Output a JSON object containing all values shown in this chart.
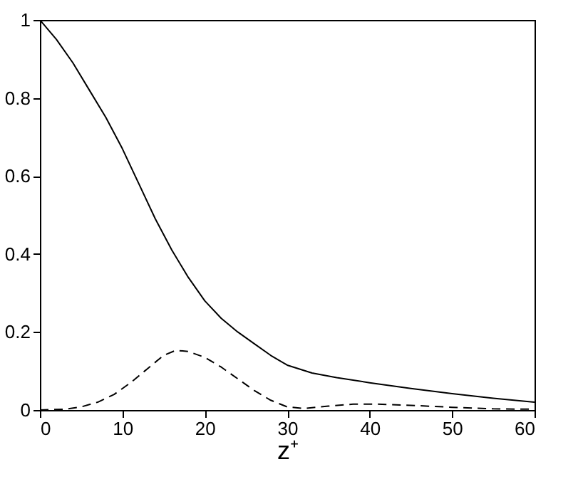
{
  "chart_data": {
    "type": "line",
    "xlabel": "z⁺",
    "xlim": [
      0,
      60
    ],
    "ylim": [
      0,
      1
    ],
    "xticks": [
      0,
      10,
      20,
      30,
      40,
      50,
      60
    ],
    "yticks": [
      0,
      {
        "value": 0.2,
        "label": "0.2"
      },
      {
        "value": 0.4,
        "label": "0.4"
      },
      {
        "value": 0.6,
        "label": "0.6"
      },
      {
        "value": 0.8,
        "label": "0.8"
      },
      1
    ],
    "grid": false,
    "marker": "none",
    "series": [
      {
        "color": "#000000",
        "line_style": "solid",
        "x": [
          0,
          2,
          4,
          6,
          8,
          10,
          12,
          14,
          16,
          18,
          20,
          22,
          24,
          26,
          28,
          30,
          33,
          36,
          40,
          45,
          50,
          55,
          60
        ],
        "values": [
          1,
          0.95,
          0.89,
          0.82,
          0.75,
          0.67,
          0.58,
          0.49,
          0.41,
          0.34,
          0.28,
          0.235,
          0.2,
          0.17,
          0.14,
          0.115,
          0.095,
          0.083,
          0.07,
          0.055,
          0.042,
          0.03,
          0.02
        ]
      },
      {
        "color": "#000000",
        "line_style": "dashed",
        "x": [
          0,
          3,
          5,
          7,
          9,
          11,
          13,
          15,
          16.5,
          18,
          20,
          22,
          24,
          26,
          28,
          30,
          32,
          35,
          38,
          41,
          45,
          50,
          55,
          60
        ],
        "values": [
          0,
          0.002,
          0.008,
          0.02,
          0.04,
          0.07,
          0.105,
          0.14,
          0.153,
          0.15,
          0.135,
          0.11,
          0.08,
          0.05,
          0.025,
          0.008,
          0.004,
          0.01,
          0.015,
          0.015,
          0.012,
          0.007,
          0.003,
          0.002
        ]
      }
    ]
  }
}
